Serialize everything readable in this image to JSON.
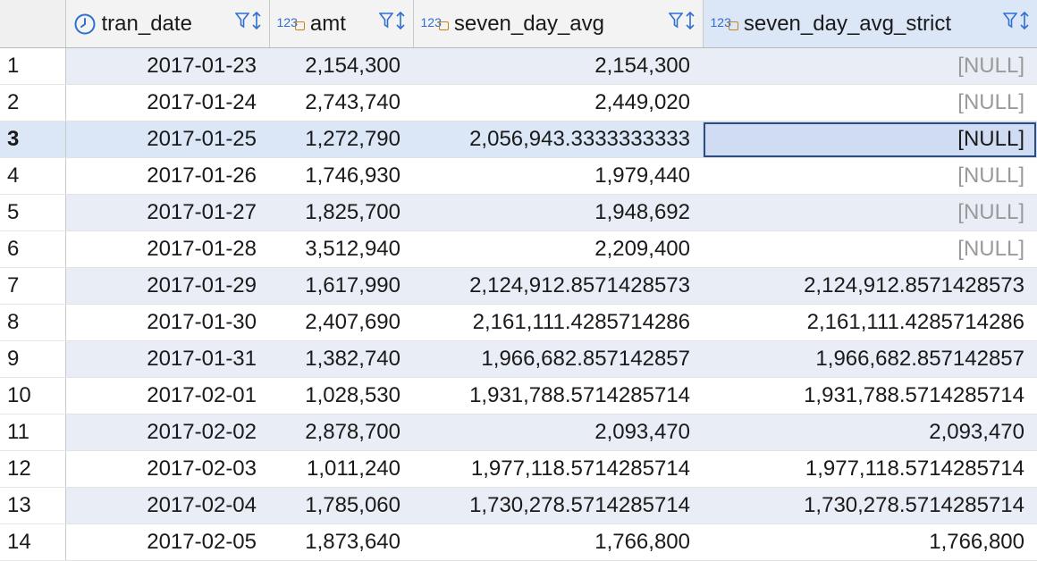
{
  "columns": {
    "tran_date": "tran_date",
    "amt": "amt",
    "seven_day_avg": "seven_day_avg",
    "seven_day_avg_strict": "seven_day_avg_strict"
  },
  "type_labels": {
    "numeric": "123"
  },
  "icons": {
    "date_type": "clock-icon",
    "numeric_type": "numeric-lock-icon",
    "filter": "filter-icon",
    "sort": "sort-arrows-icon"
  },
  "colors": {
    "alt_row": "#e8edf6",
    "selected_row": "#dbe6f7",
    "null_text": "#9a9a9a",
    "type_icon": "#2f6fd1"
  },
  "rows": [
    {
      "n": "1",
      "tran_date": "2017-01-23",
      "amt": "2,154,300",
      "seven_day_avg": "2,154,300",
      "seven_day_avg_strict": "[NULL]"
    },
    {
      "n": "2",
      "tran_date": "2017-01-24",
      "amt": "2,743,740",
      "seven_day_avg": "2,449,020",
      "seven_day_avg_strict": "[NULL]"
    },
    {
      "n": "3",
      "tran_date": "2017-01-25",
      "amt": "1,272,790",
      "seven_day_avg": "2,056,943.3333333333",
      "seven_day_avg_strict": "[NULL]"
    },
    {
      "n": "4",
      "tran_date": "2017-01-26",
      "amt": "1,746,930",
      "seven_day_avg": "1,979,440",
      "seven_day_avg_strict": "[NULL]"
    },
    {
      "n": "5",
      "tran_date": "2017-01-27",
      "amt": "1,825,700",
      "seven_day_avg": "1,948,692",
      "seven_day_avg_strict": "[NULL]"
    },
    {
      "n": "6",
      "tran_date": "2017-01-28",
      "amt": "3,512,940",
      "seven_day_avg": "2,209,400",
      "seven_day_avg_strict": "[NULL]"
    },
    {
      "n": "7",
      "tran_date": "2017-01-29",
      "amt": "1,617,990",
      "seven_day_avg": "2,124,912.8571428573",
      "seven_day_avg_strict": "2,124,912.8571428573"
    },
    {
      "n": "8",
      "tran_date": "2017-01-30",
      "amt": "2,407,690",
      "seven_day_avg": "2,161,111.4285714286",
      "seven_day_avg_strict": "2,161,111.4285714286"
    },
    {
      "n": "9",
      "tran_date": "2017-01-31",
      "amt": "1,382,740",
      "seven_day_avg": "1,966,682.857142857",
      "seven_day_avg_strict": "1,966,682.857142857"
    },
    {
      "n": "10",
      "tran_date": "2017-02-01",
      "amt": "1,028,530",
      "seven_day_avg": "1,931,788.5714285714",
      "seven_day_avg_strict": "1,931,788.5714285714"
    },
    {
      "n": "11",
      "tran_date": "2017-02-02",
      "amt": "2,878,700",
      "seven_day_avg": "2,093,470",
      "seven_day_avg_strict": "2,093,470"
    },
    {
      "n": "12",
      "tran_date": "2017-02-03",
      "amt": "1,011,240",
      "seven_day_avg": "1,977,118.5714285714",
      "seven_day_avg_strict": "1,977,118.5714285714"
    },
    {
      "n": "13",
      "tran_date": "2017-02-04",
      "amt": "1,785,060",
      "seven_day_avg": "1,730,278.5714285714",
      "seven_day_avg_strict": "1,730,278.5714285714"
    },
    {
      "n": "14",
      "tran_date": "2017-02-05",
      "amt": "1,873,640",
      "seven_day_avg": "1,766,800",
      "seven_day_avg_strict": "1,766,800"
    }
  ],
  "selection": {
    "current_row": "3",
    "active_column": "seven_day_avg_strict"
  }
}
